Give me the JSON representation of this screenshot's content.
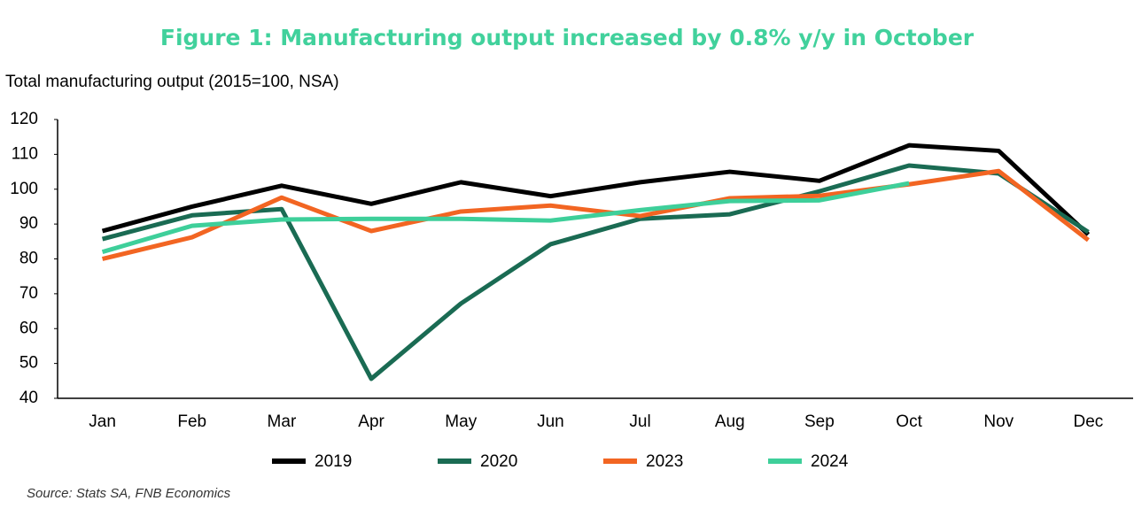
{
  "chart_data": {
    "type": "line",
    "title": "Figure 1: Manufacturing output increased by 0.8% y/y in October",
    "y_label": "Total manufacturing output (2015=100, NSA)",
    "source": "Source: Stats SA, FNB Economics",
    "categories": [
      "Jan",
      "Feb",
      "Mar",
      "Apr",
      "May",
      "Jun",
      "Jul",
      "Aug",
      "Sep",
      "Oct",
      "Nov",
      "Dec"
    ],
    "series": [
      {
        "name": "2019",
        "color": "#000000",
        "values": [
          88,
          95,
          101,
          95.8,
          102,
          98,
          102,
          105,
          102.4,
          112.6,
          111,
          87
        ]
      },
      {
        "name": "2020",
        "color": "#1a6b53",
        "values": [
          85.7,
          92.5,
          94.3,
          45.6,
          67.2,
          84.2,
          91.5,
          92.8,
          99.4,
          106.8,
          104.5,
          87.7
        ]
      },
      {
        "name": "2023",
        "color": "#f26522",
        "values": [
          80,
          86.2,
          97.6,
          88,
          93.6,
          95.3,
          92.3,
          97.4,
          98.1,
          101.4,
          105.2,
          85.4
        ]
      },
      {
        "name": "2024",
        "color": "#3ecf9a",
        "values": [
          82,
          89.5,
          91.3,
          91.5,
          91.5,
          91,
          94,
          96.6,
          96.8,
          101.7,
          null,
          null
        ]
      }
    ],
    "ylim": [
      40,
      120
    ],
    "yticks": [
      40,
      50,
      60,
      70,
      80,
      90,
      100,
      110,
      120
    ],
    "grid": false,
    "legend": "bottom",
    "title_color": "#41d19c"
  }
}
